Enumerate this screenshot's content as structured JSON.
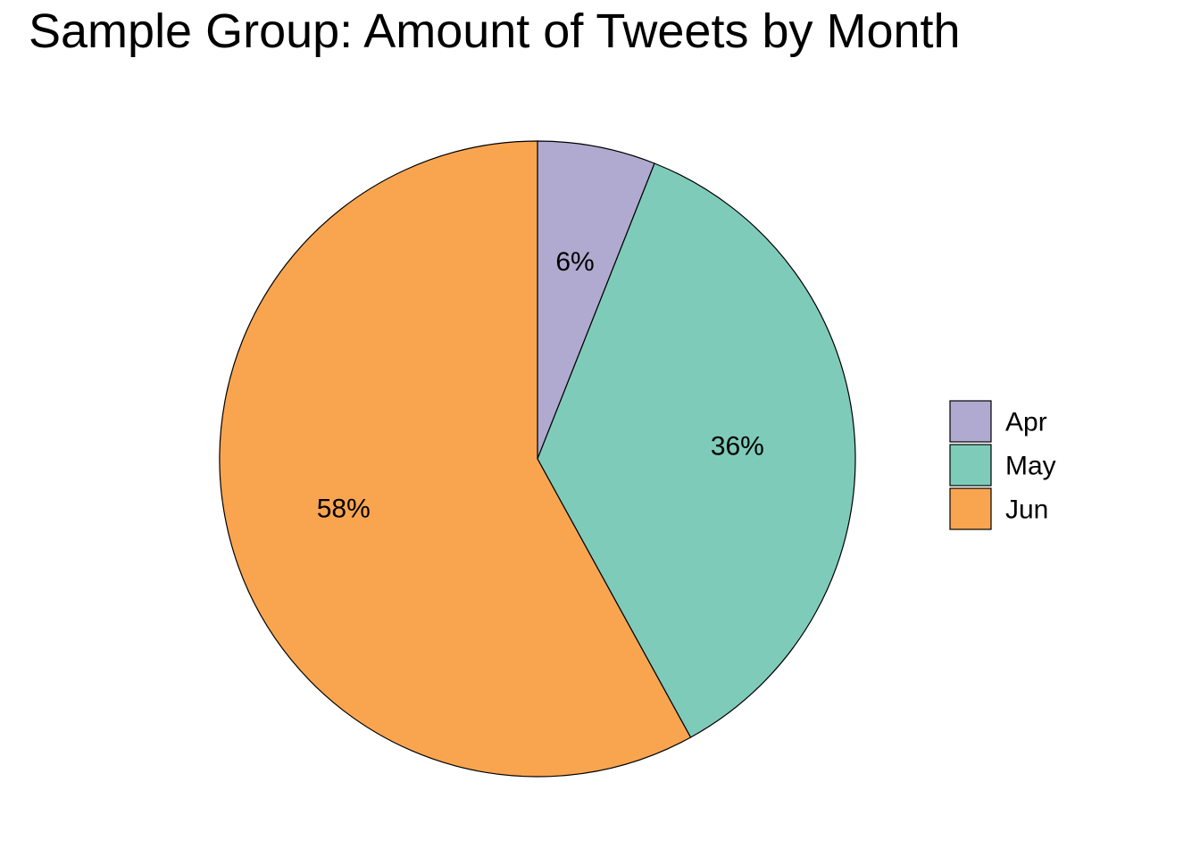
{
  "chart_data": {
    "type": "pie",
    "title": "Sample Group: Amount of Tweets by Month",
    "categories": [
      "Apr",
      "May",
      "Jun"
    ],
    "values": [
      6,
      36,
      58
    ],
    "labels": [
      "6%",
      "36%",
      "58%"
    ],
    "colors": [
      "#b0aad0",
      "#7fcbba",
      "#f9a550"
    ],
    "legend_position": "right"
  }
}
